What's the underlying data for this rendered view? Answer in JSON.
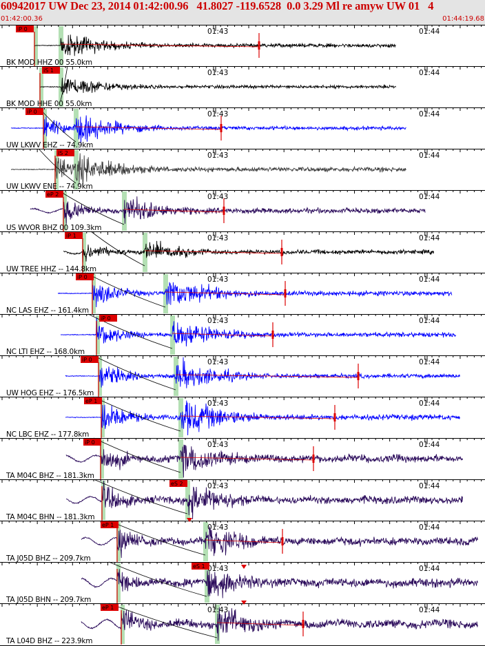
{
  "header": {
    "title": "60942017 UW Dec 23, 2014 01:42:00.96   41.8027 -119.6528  0.0 3.29 Ml re amyw UW 01   4",
    "start_time": "01:42:00.36",
    "end_time": "01:44:19.68"
  },
  "time_marks": [
    "01:43",
    "01:44"
  ],
  "colors": {
    "black": "#000000",
    "blue": "#0000ff",
    "gray": "#3c3c3c",
    "purple": "#2a0a5a",
    "red": "#dd0000",
    "pick_bg": "#dd0000",
    "green": "#b4e0b4"
  },
  "traces": [
    {
      "label": "BK MOD HHZ 00 55.0km",
      "pick": "iP 0",
      "color": "black"
    },
    {
      "label": "BK MOD HHE 00 55.0km",
      "pick": "iS 1",
      "color": "black"
    },
    {
      "label": "UW LKWV EHZ -- 74.9km",
      "pick": "iP 0",
      "color": "blue"
    },
    {
      "label": "UW LKWV ENE -- 74.9km",
      "pick": "iS 2",
      "color": "gray"
    },
    {
      "label": "US WVOR BHZ 00 109.3km",
      "pick": "eP 2",
      "color": "purple"
    },
    {
      "label": "UW TREE HHZ -- 144.8km",
      "pick": "iP 1",
      "color": "black"
    },
    {
      "label": "NC LAS EHZ -- 161.4km",
      "pick": "iP 0",
      "color": "blue"
    },
    {
      "label": "NC LTI EHZ -- 168.0km",
      "pick": "iP 0",
      "color": "blue"
    },
    {
      "label": "UW HOG EHZ -- 176.5km",
      "pick": "iP 0",
      "color": "blue"
    },
    {
      "label": "NC LBC EHZ -- 177.8km",
      "pick": "eP 1",
      "color": "blue"
    },
    {
      "label": "TA M04C BHZ -- 181.3km",
      "pick": "iP 0",
      "color": "purple"
    },
    {
      "label": "TA M04C BHN -- 181.3km",
      "pick": "eS 2",
      "color": "purple"
    },
    {
      "label": "TA J05D BHZ -- 209.7km",
      "pick": "eP 1",
      "color": "purple"
    },
    {
      "label": "TA J05D BHN -- 209.7km",
      "pick": "eS 1",
      "color": "purple"
    },
    {
      "label": "TA L04D BHZ -- 223.9km",
      "pick": "eP 1",
      "color": "purple"
    }
  ]
}
